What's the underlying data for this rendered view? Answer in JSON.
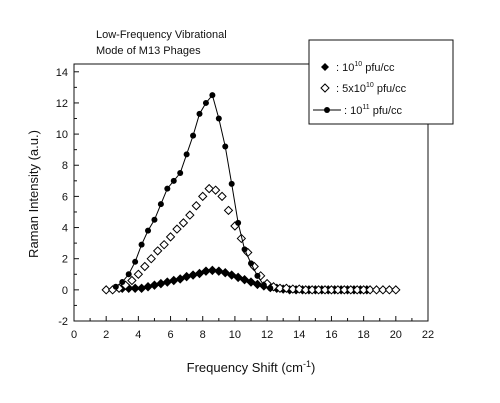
{
  "chart_data": {
    "type": "scatter",
    "title_lines": [
      "Low-Frequency Vibrational",
      "Mode of M13 Phages"
    ],
    "xlabel_main": "Frequency Shift (cm",
    "xlabel_sup": "-1",
    "xlabel_end": ")",
    "ylabel": "Raman Intensity (a.u.)",
    "xlim": [
      0,
      22
    ],
    "ylim": [
      -2,
      14.5
    ],
    "x_ticks": [
      0,
      2,
      4,
      6,
      8,
      10,
      12,
      14,
      16,
      18,
      20,
      22
    ],
    "y_ticks": [
      -2,
      0,
      2,
      4,
      6,
      8,
      10,
      12,
      14
    ],
    "grid": false,
    "legend_position": "top-right",
    "series": [
      {
        "legend_prefix": ": 10",
        "legend_sup": "10",
        "legend_suffix": " pfu/cc",
        "marker": "filled-diamond",
        "line": false,
        "color": "#000000",
        "x": [
          3.0,
          3.4,
          3.8,
          4.2,
          4.6,
          5.0,
          5.4,
          5.8,
          6.2,
          6.6,
          7.0,
          7.4,
          7.8,
          8.2,
          8.6,
          9.0,
          9.4,
          9.8,
          10.2,
          10.6,
          11.0,
          11.4,
          11.8,
          12.2,
          12.6,
          13.0,
          13.4,
          13.8,
          14.2,
          14.6,
          15.0,
          15.4,
          15.8,
          16.2,
          16.6,
          17.0,
          17.4,
          17.8,
          18.2
        ],
        "y": [
          0.1,
          0.1,
          0.1,
          0.1,
          0.2,
          0.3,
          0.4,
          0.5,
          0.6,
          0.7,
          0.85,
          0.95,
          1.05,
          1.2,
          1.25,
          1.2,
          1.1,
          0.95,
          0.8,
          0.65,
          0.5,
          0.35,
          0.25,
          0.15,
          0.1,
          0.05,
          0.0,
          0.0,
          0.0,
          0.0,
          0.0,
          0.0,
          0.0,
          0.0,
          0.0,
          0.0,
          0.0,
          0.0,
          0.0
        ]
      },
      {
        "legend_prefix": ": 5x10",
        "legend_sup": "10",
        "legend_suffix": " pfu/cc",
        "marker": "open-diamond",
        "line": false,
        "color": "#000000",
        "x": [
          2.0,
          2.4,
          2.8,
          3.2,
          3.6,
          4.0,
          4.4,
          4.8,
          5.2,
          5.6,
          6.0,
          6.4,
          6.8,
          7.2,
          7.6,
          8.0,
          8.4,
          8.8,
          9.2,
          9.6,
          10.0,
          10.4,
          10.8,
          11.2,
          11.6,
          12.0,
          12.4,
          12.8,
          13.2,
          13.6,
          14.0,
          14.4,
          14.8,
          15.2,
          15.6,
          16.0,
          16.4,
          16.8,
          17.2,
          17.6,
          18.0,
          18.4,
          18.8,
          19.2,
          19.6,
          20.0
        ],
        "y": [
          0.0,
          0.0,
          0.1,
          0.3,
          0.6,
          1.0,
          1.5,
          2.0,
          2.5,
          2.9,
          3.4,
          3.9,
          4.3,
          4.8,
          5.4,
          6.0,
          6.5,
          6.4,
          6.0,
          5.1,
          4.1,
          3.3,
          2.4,
          1.5,
          0.9,
          0.4,
          0.2,
          0.1,
          0.1,
          0.05,
          0.05,
          0.0,
          0.0,
          0.0,
          0.0,
          0.0,
          0.0,
          0.0,
          0.0,
          0.0,
          0.0,
          0.0,
          0.0,
          0.0,
          0.0,
          0.0
        ]
      },
      {
        "legend_prefix": ": 10",
        "legend_sup": "11",
        "legend_suffix": " pfu/cc",
        "marker": "filled-circle",
        "line": true,
        "color": "#000000",
        "x": [
          2.6,
          3.0,
          3.4,
          3.8,
          4.2,
          4.6,
          5.0,
          5.4,
          5.8,
          6.2,
          6.6,
          7.0,
          7.4,
          7.8,
          8.2,
          8.6,
          9.0,
          9.4,
          9.8,
          10.2,
          10.6,
          11.0,
          11.4,
          11.8,
          12.2
        ],
        "y": [
          0.2,
          0.5,
          1.0,
          1.8,
          2.9,
          3.8,
          4.5,
          5.5,
          6.5,
          7.0,
          7.5,
          8.7,
          9.9,
          11.3,
          12.0,
          12.5,
          11.0,
          9.2,
          6.8,
          4.3,
          2.6,
          1.7,
          0.9,
          0.3,
          0.1
        ]
      }
    ]
  }
}
